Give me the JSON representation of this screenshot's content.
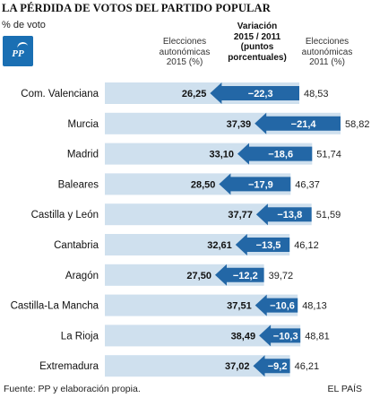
{
  "title": "LA PÉRDIDA DE VOTOS DEL PARTIDO POPULAR",
  "subtitle": "% de voto",
  "logo_text": "PP",
  "headers": {
    "left": [
      "Elecciones",
      "autonómicas",
      "2015 (%)"
    ],
    "middle": [
      "Variación",
      "2015 / 2011",
      "(puntos",
      "porcentuales)"
    ],
    "right": [
      "Elecciones",
      "autonómicas",
      "2011 (%)"
    ]
  },
  "source": "Fuente: PP y elaboración propia.",
  "credit": "EL PAÍS",
  "colors": {
    "bar_2011": "#cfe0ee",
    "arrow": "#2367a6",
    "value_text": "#111111",
    "arrow_text": "#ffffff"
  },
  "chart_data": {
    "type": "bar",
    "categories": [
      "Com. Valenciana",
      "Murcia",
      "Madrid",
      "Baleares",
      "Castilla y León",
      "Cantabria",
      "Aragón",
      "Castilla-La Mancha",
      "La Rioja",
      "Extremadura"
    ],
    "series": [
      {
        "name": "Elecciones autonómicas 2015 (%)",
        "values": [
          26.25,
          37.39,
          33.1,
          28.5,
          37.77,
          32.61,
          27.5,
          37.51,
          38.49,
          37.02
        ],
        "labels": [
          "26,25",
          "37,39",
          "33,10",
          "28,50",
          "37,77",
          "32,61",
          "27,50",
          "37,51",
          "38,49",
          "37,02"
        ]
      },
      {
        "name": "Variación 2015 / 2011 (puntos porcentuales)",
        "values": [
          -22.3,
          -21.4,
          -18.6,
          -17.9,
          -13.8,
          -13.5,
          -12.2,
          -10.6,
          -10.3,
          -9.2
        ],
        "labels": [
          "−22,3",
          "−21,4",
          "−18,6",
          "−17,9",
          "−13,8",
          "−13,5",
          "−12,2",
          "−10,6",
          "−10,3",
          "−9,2"
        ]
      },
      {
        "name": "Elecciones autonómicas 2011 (%)",
        "values": [
          48.53,
          58.82,
          51.74,
          46.37,
          51.59,
          46.12,
          39.72,
          48.13,
          48.81,
          46.21
        ],
        "labels": [
          "48,53",
          "58,82",
          "51,74",
          "46,37",
          "51,59",
          "46,12",
          "39,72",
          "48,13",
          "48,81",
          "46,21"
        ]
      }
    ],
    "xlim": [
      0,
      58.82
    ],
    "grid": false,
    "legend": "none"
  }
}
